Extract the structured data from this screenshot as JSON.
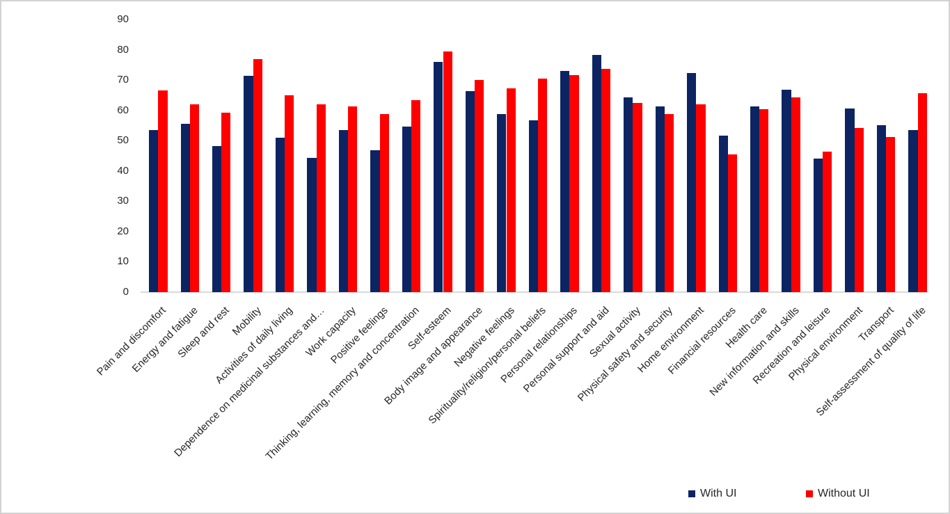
{
  "chart_data": {
    "type": "bar",
    "title": "",
    "xlabel": "",
    "ylabel": "",
    "ylim": [
      0,
      90
    ],
    "yticks": [
      0,
      10,
      20,
      30,
      40,
      50,
      60,
      70,
      80,
      90
    ],
    "grid": false,
    "legend_position": "bottom-right",
    "categories": [
      "Pain and discomfort",
      "Energy and fatigue",
      "Sleep and rest",
      "Mobility",
      "Activities of daily living",
      "Dependence on medicinal substances and…",
      "Work capacity",
      "Positive feelings",
      "Thinking, learning, memory and concentration",
      "Self-esteem",
      "Body image and appearance",
      "Negative feelings",
      "Spirituality/religion/personal beliefs",
      "Personal relationships",
      "Personal support and aid",
      "Sexual activity",
      "Physical safety and security",
      "Home environment",
      "Financial resources",
      "Health care",
      "New information and skills",
      "Recreation and leisure",
      "Physical environment",
      "Transport",
      "Self-assessment of quality of life"
    ],
    "series": [
      {
        "name": "With UI",
        "color": "#0c2462",
        "values": [
          53.5,
          55.5,
          48.3,
          71.3,
          51.0,
          44.3,
          53.6,
          46.8,
          54.7,
          76.0,
          66.3,
          58.9,
          56.7,
          73.0,
          78.4,
          64.2,
          61.2,
          72.4,
          51.6,
          61.3,
          66.8,
          44.2,
          60.6,
          55.0,
          53.6
        ]
      },
      {
        "name": "Without UI",
        "color": "#ff0000",
        "values": [
          66.5,
          62.0,
          59.2,
          77.0,
          64.9,
          62.0,
          61.3,
          58.8,
          63.4,
          79.5,
          70.0,
          67.2,
          70.5,
          71.6,
          73.7,
          62.4,
          58.8,
          61.9,
          45.4,
          60.4,
          64.3,
          46.5,
          54.2,
          51.1,
          65.7
        ]
      }
    ]
  },
  "colors": {
    "axis_line": "#d9d9d9",
    "text": "#262626",
    "background": "#ffffff",
    "border": "#d2d2d2"
  }
}
